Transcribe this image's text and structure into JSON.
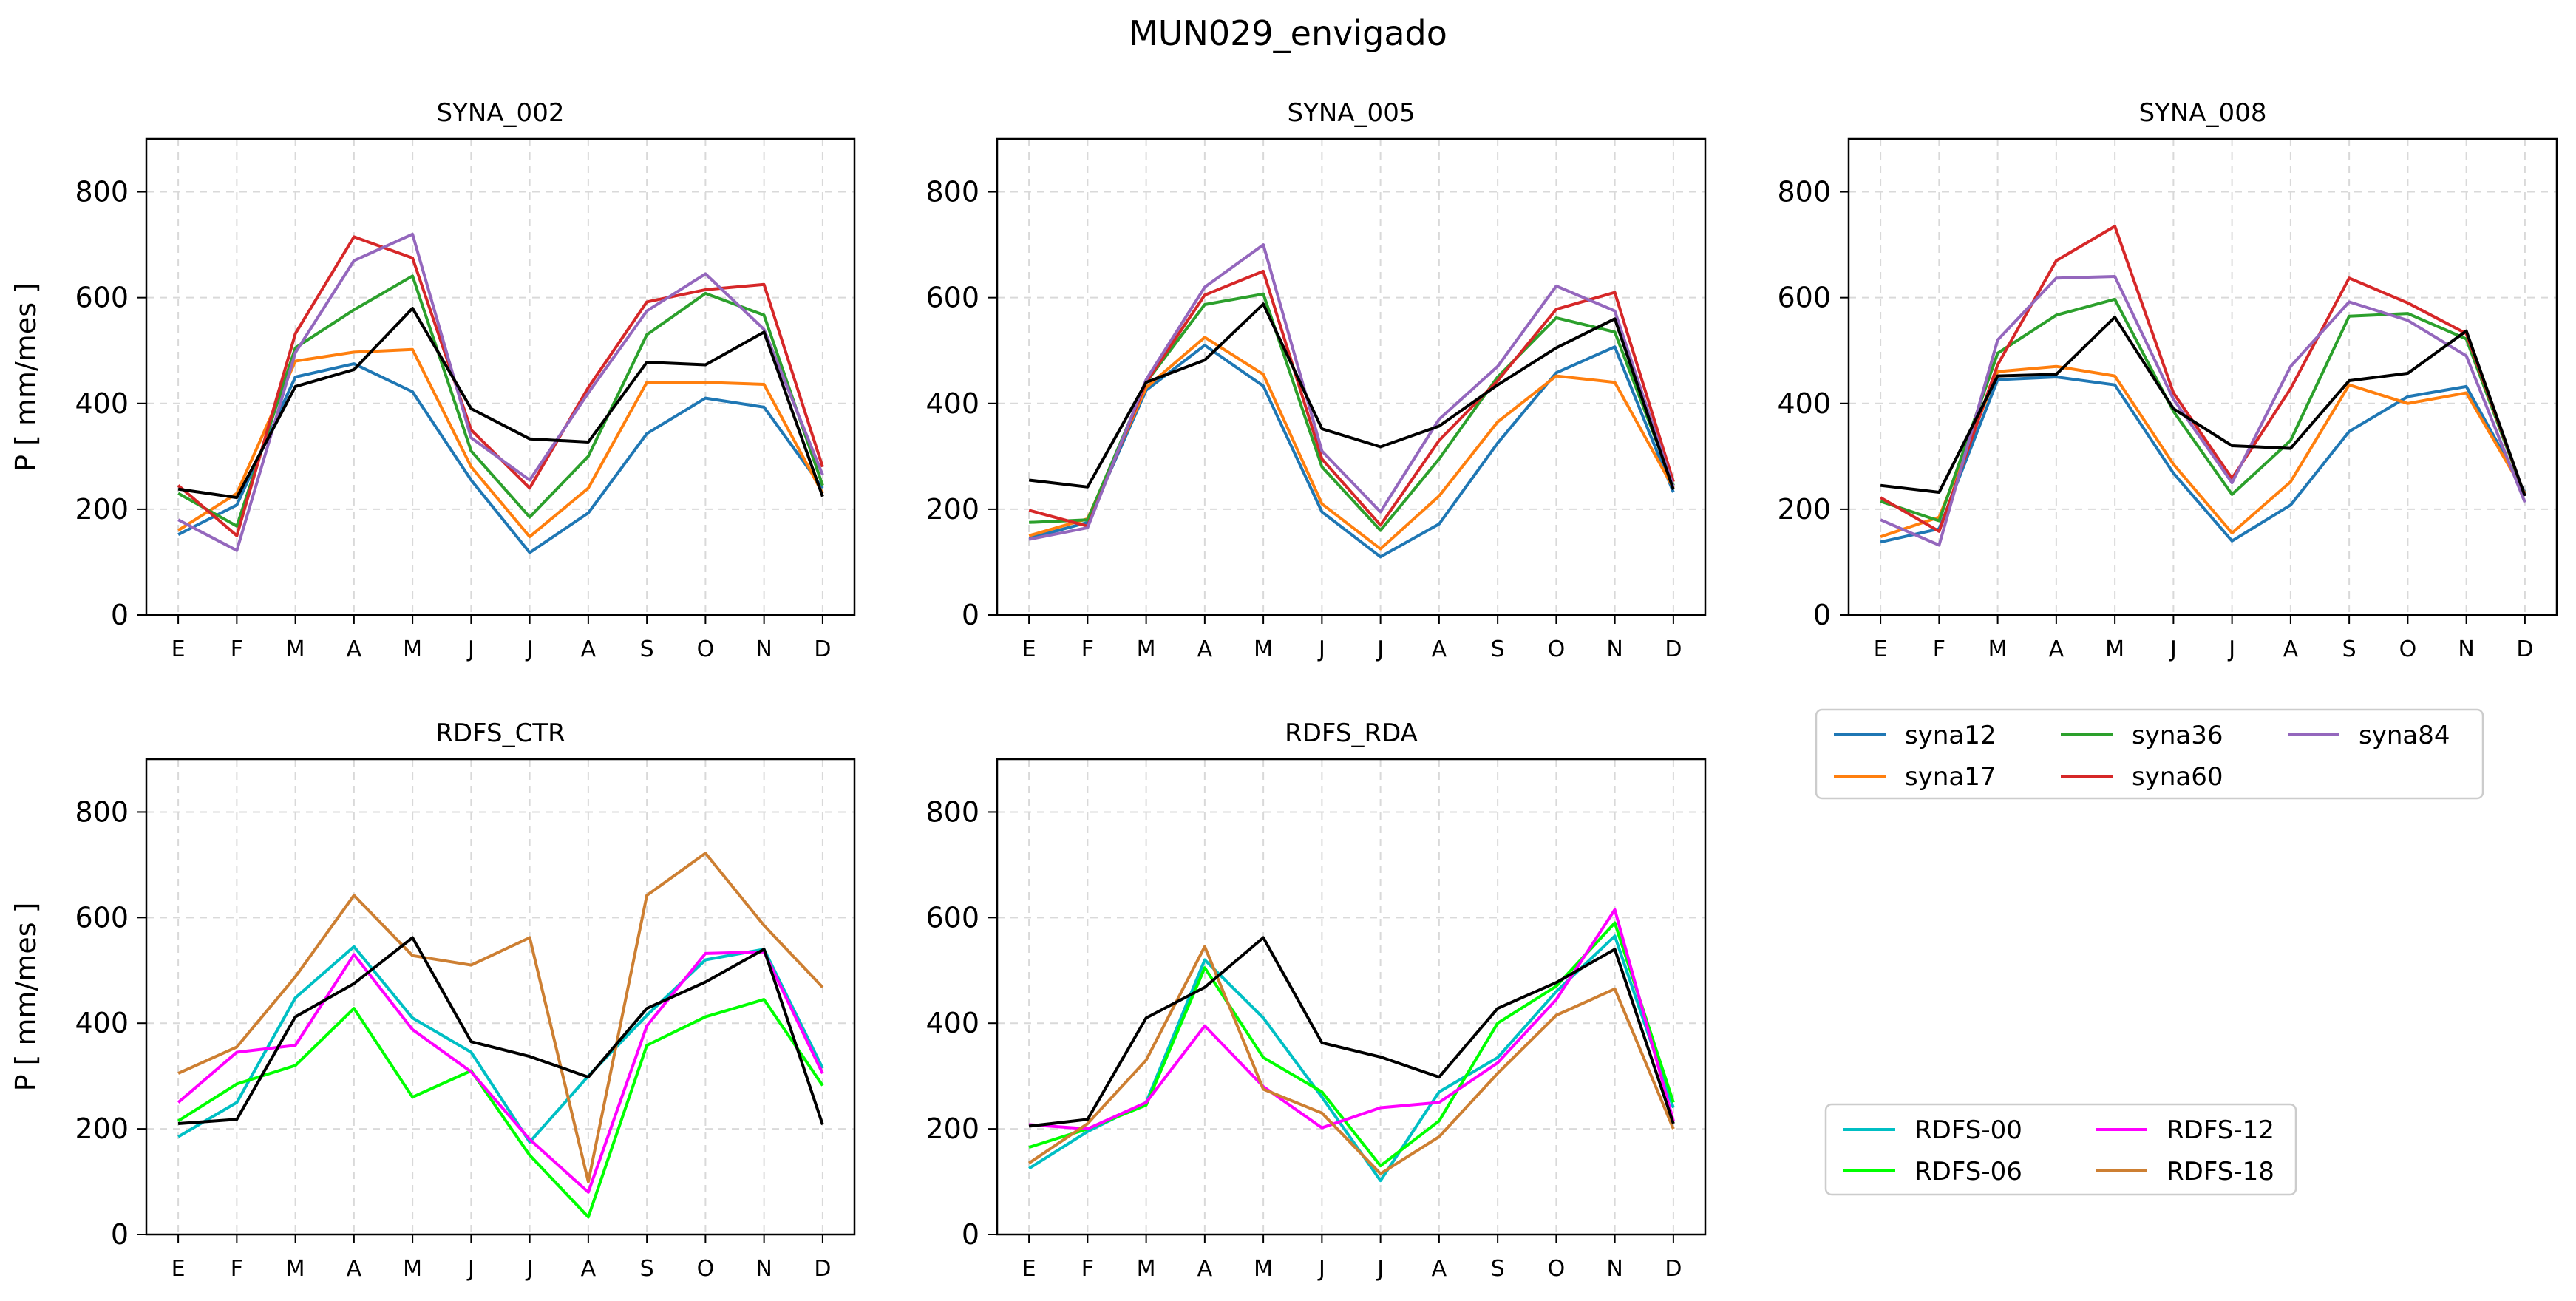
{
  "figure": {
    "suptitle": "MUN029_envigado"
  },
  "colors": {
    "syna12": "#1f77b4",
    "syna17": "#ff7f0e",
    "syna36": "#2ca02c",
    "syna60": "#d62728",
    "syna84": "#9467bd",
    "RDFS-00": "#00bfc4",
    "RDFS-06": "#00ff00",
    "RDFS-12": "#ff00ff",
    "RDFS-18": "#cd7f32",
    "observed": "#000000"
  },
  "legends": [
    {
      "entries": [
        "syna12",
        "syna17",
        "syna36",
        "syna60",
        "syna84"
      ],
      "ncol": 3,
      "placement": "right of bottom row, top"
    },
    {
      "entries": [
        "RDFS-00",
        "RDFS-06",
        "RDFS-12",
        "RDFS-18"
      ],
      "ncol": 2,
      "placement": "right of bottom row, bottom"
    }
  ],
  "chart_data": [
    {
      "type": "line",
      "title": "SYNA_002",
      "ylabel": "P [ mm/mes ]",
      "xlabel": "",
      "categories": [
        "E",
        "F",
        "M",
        "A",
        "M",
        "J",
        "J",
        "A",
        "S",
        "O",
        "N",
        "D"
      ],
      "ylim": [
        0,
        900
      ],
      "yticks": [
        0,
        200,
        400,
        600,
        800
      ],
      "grid": true,
      "series": [
        {
          "name": "syna12",
          "values": [
            152,
            208,
            450,
            475,
            422,
            255,
            118,
            193,
            343,
            410,
            393,
            240
          ]
        },
        {
          "name": "syna17",
          "values": [
            160,
            230,
            480,
            497,
            502,
            280,
            148,
            240,
            440,
            440,
            436,
            230
          ]
        },
        {
          "name": "syna36",
          "values": [
            230,
            168,
            505,
            577,
            641,
            310,
            185,
            300,
            530,
            608,
            567,
            245
          ]
        },
        {
          "name": "syna60",
          "values": [
            245,
            150,
            532,
            715,
            675,
            350,
            240,
            430,
            592,
            615,
            625,
            280
          ]
        },
        {
          "name": "syna84",
          "values": [
            180,
            122,
            496,
            670,
            720,
            335,
            255,
            420,
            575,
            645,
            540,
            265
          ]
        },
        {
          "values": [
            238,
            222,
            432,
            464,
            580,
            390,
            333,
            327,
            478,
            473,
            535,
            224
          ]
        }
      ]
    },
    {
      "type": "line",
      "title": "SYNA_005",
      "ylabel": "",
      "xlabel": "",
      "categories": [
        "E",
        "F",
        "M",
        "A",
        "M",
        "J",
        "J",
        "A",
        "S",
        "O",
        "N",
        "D"
      ],
      "ylim": [
        0,
        900
      ],
      "yticks": [
        0,
        200,
        400,
        600,
        800
      ],
      "grid": true,
      "series": [
        {
          "name": "syna12",
          "values": [
            145,
            175,
            425,
            510,
            433,
            195,
            110,
            172,
            325,
            458,
            507,
            232
          ]
        },
        {
          "name": "syna17",
          "values": [
            150,
            182,
            430,
            525,
            455,
            210,
            125,
            225,
            365,
            452,
            440,
            240
          ]
        },
        {
          "name": "syna36",
          "values": [
            175,
            180,
            440,
            587,
            607,
            280,
            160,
            295,
            450,
            562,
            535,
            245
          ]
        },
        {
          "name": "syna60",
          "values": [
            198,
            168,
            440,
            605,
            650,
            295,
            170,
            330,
            443,
            578,
            610,
            252
          ]
        },
        {
          "values": [
            143,
            165,
            445,
            620,
            700,
            310,
            195,
            370,
            470,
            622,
            575,
            242
          ]
        },
        {
          "values": [
            255,
            242,
            440,
            482,
            588,
            352,
            318,
            357,
            435,
            505,
            560,
            237
          ]
        }
      ]
    },
    {
      "type": "line",
      "title": "SYNA_008",
      "ylabel": "",
      "xlabel": "",
      "categories": [
        "E",
        "F",
        "M",
        "A",
        "M",
        "J",
        "J",
        "A",
        "S",
        "O",
        "N",
        "D"
      ],
      "ylim": [
        0,
        900
      ],
      "yticks": [
        0,
        200,
        400,
        600,
        800
      ],
      "grid": true,
      "series": [
        {
          "name": "syna12",
          "values": [
            138,
            163,
            445,
            450,
            435,
            268,
            140,
            208,
            347,
            413,
            432,
            232
          ]
        },
        {
          "name": "syna17",
          "values": [
            148,
            185,
            460,
            470,
            452,
            285,
            155,
            252,
            435,
            400,
            420,
            230
          ]
        },
        {
          "name": "syna36",
          "values": [
            215,
            178,
            495,
            567,
            597,
            385,
            228,
            330,
            565,
            570,
            522,
            225
          ]
        },
        {
          "name": "syna60",
          "values": [
            222,
            158,
            473,
            670,
            735,
            420,
            258,
            428,
            637,
            590,
            532,
            225
          ]
        },
        {
          "values": [
            180,
            132,
            520,
            637,
            640,
            408,
            250,
            470,
            592,
            557,
            490,
            213
          ]
        },
        {
          "values": [
            245,
            232,
            452,
            455,
            563,
            390,
            320,
            315,
            443,
            457,
            537,
            225
          ]
        }
      ]
    },
    {
      "type": "line",
      "title": "RDFS_CTR",
      "ylabel": "P [ mm/mes ]",
      "xlabel": "",
      "categories": [
        "E",
        "F",
        "M",
        "A",
        "M",
        "J",
        "J",
        "A",
        "S",
        "O",
        "N",
        "D"
      ],
      "ylim": [
        0,
        900
      ],
      "yticks": [
        0,
        200,
        400,
        600,
        800
      ],
      "grid": true,
      "series": [
        {
          "name": "RDFS-00",
          "values": [
            185,
            250,
            448,
            545,
            410,
            345,
            175,
            300,
            415,
            520,
            540,
            315
          ]
        },
        {
          "name": "RDFS-06",
          "values": [
            215,
            285,
            320,
            428,
            260,
            310,
            150,
            33,
            358,
            412,
            445,
            282
          ]
        },
        {
          "name": "RDFS-12",
          "values": [
            250,
            345,
            358,
            530,
            388,
            308,
            180,
            80,
            395,
            532,
            535,
            305
          ]
        },
        {
          "name": "RDFS-18",
          "values": [
            305,
            355,
            488,
            642,
            528,
            510,
            562,
            100,
            642,
            722,
            585,
            468
          ]
        },
        {
          "values": [
            210,
            218,
            412,
            475,
            562,
            365,
            337,
            298,
            428,
            478,
            540,
            208
          ]
        }
      ]
    },
    {
      "type": "line",
      "title": "RDFS_RDA",
      "ylabel": "",
      "xlabel": "",
      "categories": [
        "E",
        "F",
        "M",
        "A",
        "M",
        "J",
        "J",
        "A",
        "S",
        "O",
        "N",
        "D"
      ],
      "ylim": [
        0,
        900
      ],
      "yticks": [
        0,
        200,
        400,
        600,
        800
      ],
      "grid": true,
      "series": [
        {
          "name": "RDFS-00",
          "values": [
            125,
            195,
            250,
            520,
            410,
            260,
            102,
            270,
            335,
            460,
            565,
            240
          ]
        },
        {
          "name": "RDFS-06",
          "values": [
            165,
            200,
            245,
            505,
            335,
            270,
            130,
            215,
            400,
            470,
            590,
            250
          ]
        },
        {
          "name": "RDFS-12",
          "values": [
            208,
            200,
            250,
            395,
            280,
            202,
            240,
            250,
            325,
            445,
            615,
            215
          ]
        },
        {
          "name": "RDFS-18",
          "values": [
            135,
            210,
            330,
            545,
            275,
            230,
            115,
            185,
            305,
            415,
            465,
            200
          ]
        },
        {
          "values": [
            205,
            218,
            410,
            468,
            562,
            363,
            336,
            298,
            428,
            477,
            540,
            210
          ]
        }
      ]
    }
  ]
}
